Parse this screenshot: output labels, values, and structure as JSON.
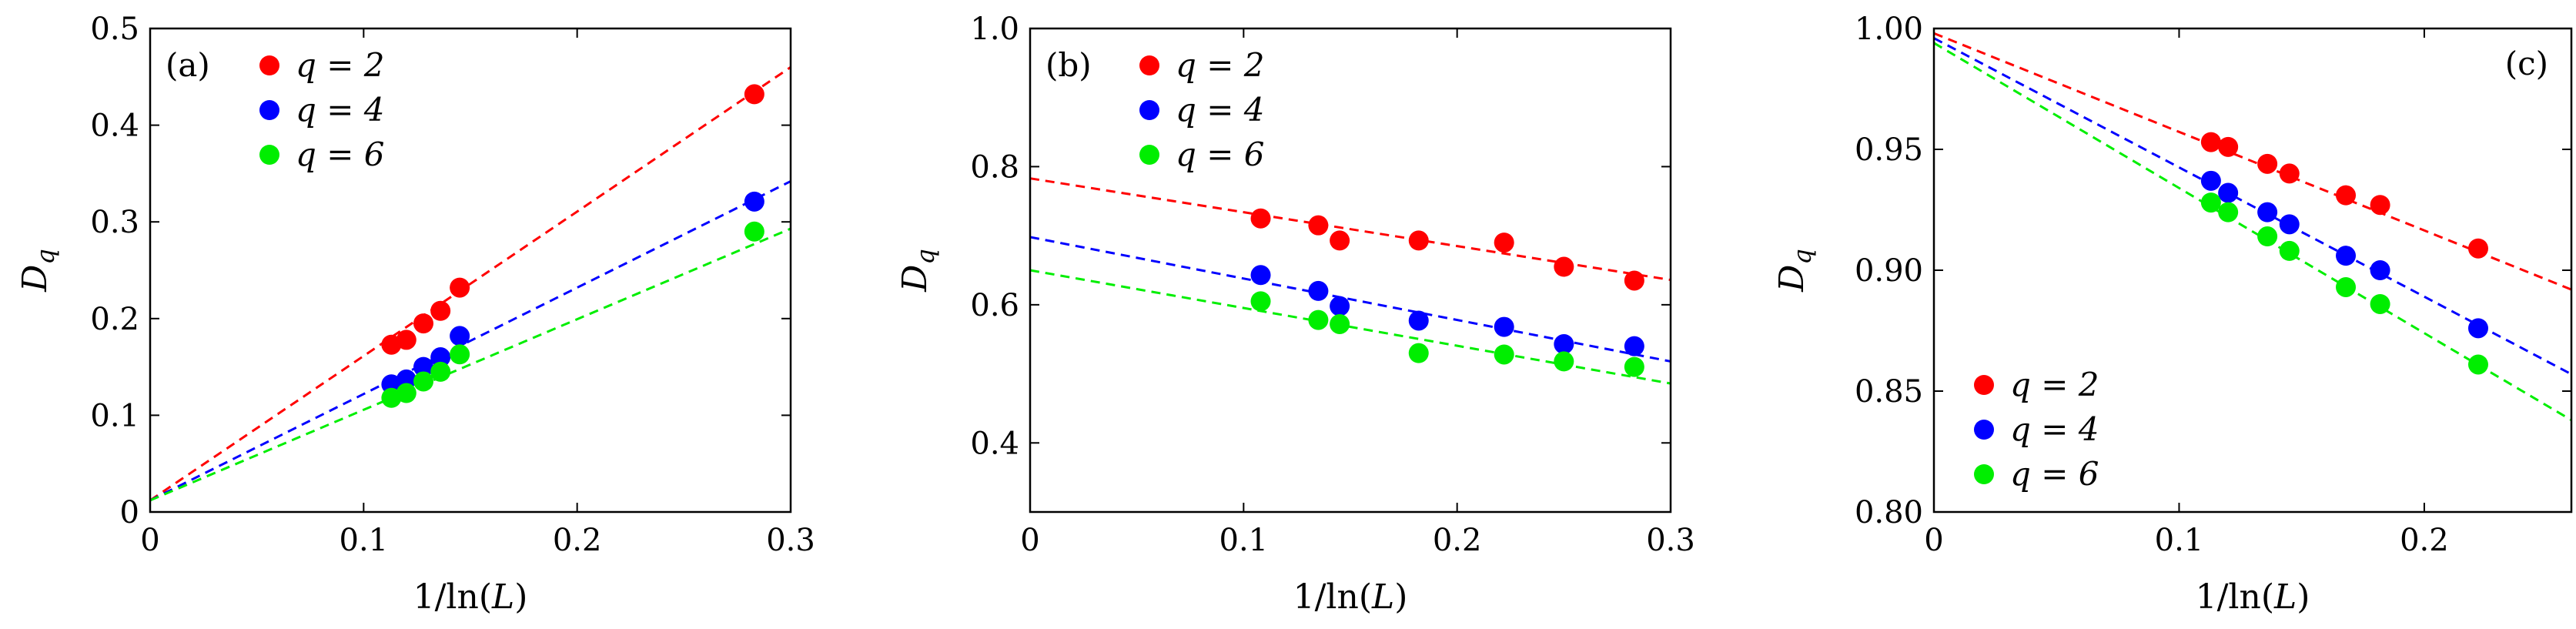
{
  "chart_data": [
    {
      "panel_label": "(a)",
      "type": "scatter",
      "xlabel": "1/ln(L)",
      "ylabel": "D_q",
      "xlim": [
        0,
        0.3
      ],
      "ylim": [
        0,
        0.5
      ],
      "xticks": [
        "0",
        "0.1",
        "0.2",
        "0.3"
      ],
      "yticks": [
        "0",
        "0.1",
        "0.2",
        "0.3",
        "0.4",
        "0.5"
      ],
      "legend_position": "top-left",
      "series": [
        {
          "name": "q = 2",
          "color": "#ff0000",
          "x": [
            0.113,
            0.12,
            0.128,
            0.136,
            0.145,
            0.283
          ],
          "y": [
            0.173,
            0.178,
            0.195,
            0.208,
            0.232,
            0.432
          ],
          "fit": [
            0.012,
            0.46
          ]
        },
        {
          "name": "q = 4",
          "color": "#0000ff",
          "x": [
            0.113,
            0.12,
            0.128,
            0.136,
            0.145,
            0.283
          ],
          "y": [
            0.132,
            0.137,
            0.15,
            0.16,
            0.182,
            0.321
          ],
          "fit": [
            0.012,
            0.342
          ]
        },
        {
          "name": "q = 6",
          "color": "#00ee00",
          "x": [
            0.113,
            0.12,
            0.128,
            0.136,
            0.145,
            0.283
          ],
          "y": [
            0.118,
            0.123,
            0.135,
            0.145,
            0.163,
            0.29
          ],
          "fit": [
            0.012,
            0.293
          ]
        }
      ]
    },
    {
      "panel_label": "(b)",
      "type": "scatter",
      "xlabel": "1/ln(L)",
      "ylabel": "D_q",
      "xlim": [
        0,
        0.3
      ],
      "ylim": [
        0.3,
        1.0
      ],
      "xticks": [
        "0",
        "0.1",
        "0.2",
        "0.3"
      ],
      "yticks": [
        "0.4",
        "0.6",
        "0.8",
        "1.0"
      ],
      "legend_position": "top-left",
      "series": [
        {
          "name": "q = 2",
          "color": "#ff0000",
          "x": [
            0.108,
            0.135,
            0.145,
            0.182,
            0.222,
            0.25,
            0.283
          ],
          "y": [
            0.725,
            0.715,
            0.693,
            0.693,
            0.69,
            0.655,
            0.635
          ],
          "fit": [
            0.783,
            0.636
          ]
        },
        {
          "name": "q = 4",
          "color": "#0000ff",
          "x": [
            0.108,
            0.135,
            0.145,
            0.182,
            0.222,
            0.25,
            0.283
          ],
          "y": [
            0.643,
            0.62,
            0.598,
            0.577,
            0.568,
            0.543,
            0.54
          ],
          "fit": [
            0.698,
            0.518
          ]
        },
        {
          "name": "q = 6",
          "color": "#00ee00",
          "x": [
            0.108,
            0.135,
            0.145,
            0.182,
            0.222,
            0.25,
            0.283
          ],
          "y": [
            0.605,
            0.578,
            0.572,
            0.53,
            0.528,
            0.518,
            0.51
          ],
          "fit": [
            0.65,
            0.486
          ]
        }
      ]
    },
    {
      "panel_label": "(c)",
      "type": "scatter",
      "xlabel": "1/ln(L)",
      "ylabel": "D_q",
      "xlim": [
        0,
        0.26
      ],
      "ylim": [
        0.8,
        1.0
      ],
      "xticks": [
        "0",
        "0.1",
        "0.2"
      ],
      "yticks": [
        "0.80",
        "0.85",
        "0.90",
        "0.95",
        "1.00"
      ],
      "legend_position": "bottom-left",
      "series": [
        {
          "name": "q = 2",
          "color": "#ff0000",
          "x": [
            0.113,
            0.12,
            0.136,
            0.145,
            0.168,
            0.182,
            0.222
          ],
          "y": [
            0.953,
            0.951,
            0.944,
            0.94,
            0.931,
            0.927,
            0.909
          ],
          "fit": [
            0.998,
            0.892
          ]
        },
        {
          "name": "q = 4",
          "color": "#0000ff",
          "x": [
            0.113,
            0.12,
            0.136,
            0.145,
            0.168,
            0.182,
            0.222
          ],
          "y": [
            0.937,
            0.932,
            0.924,
            0.919,
            0.906,
            0.9,
            0.876
          ],
          "fit": [
            0.996,
            0.857
          ]
        },
        {
          "name": "q = 6",
          "color": "#00ee00",
          "x": [
            0.113,
            0.12,
            0.136,
            0.145,
            0.168,
            0.182,
            0.222
          ],
          "y": [
            0.928,
            0.924,
            0.914,
            0.908,
            0.893,
            0.886,
            0.861
          ],
          "fit": [
            0.994,
            0.838
          ]
        }
      ]
    }
  ]
}
